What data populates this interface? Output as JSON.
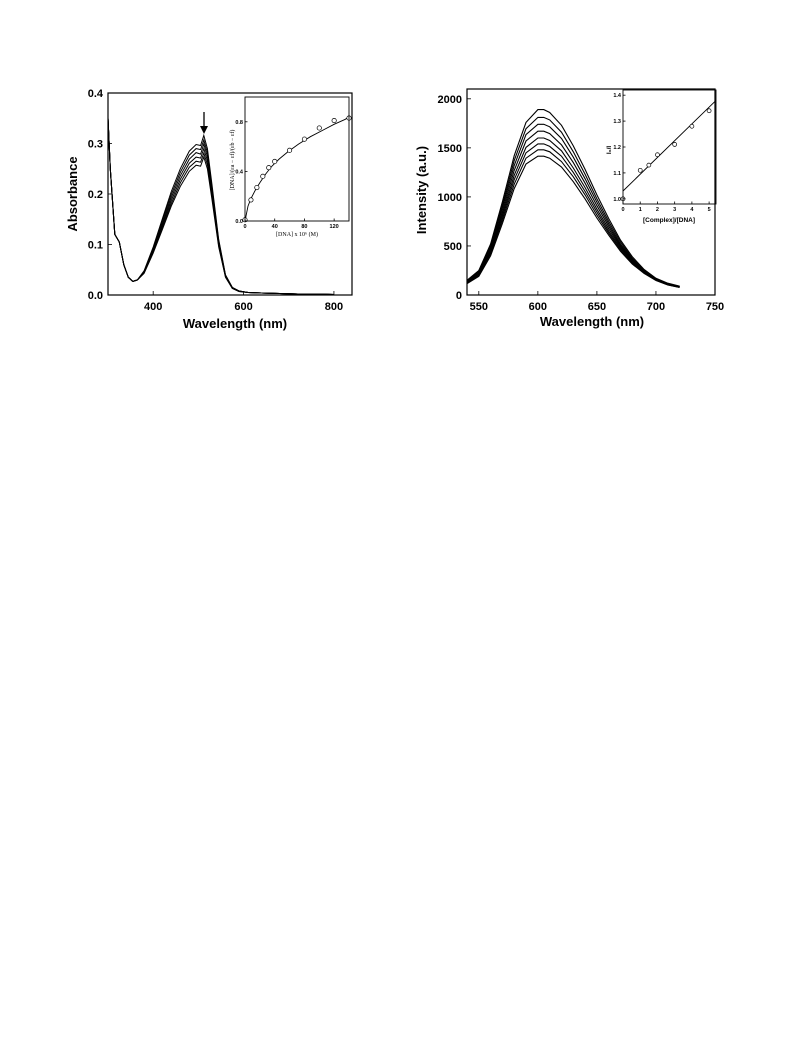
{
  "chart_data": [
    {
      "type": "line",
      "title": "",
      "xlabel": "Wavelength (nm)",
      "ylabel": "Absorbance",
      "xlim": [
        300,
        840
      ],
      "ylim": [
        0,
        0.4
      ],
      "xticks": [
        "400",
        "600",
        "800"
      ],
      "yticks": [
        "0.0",
        "0.1",
        "0.2",
        "0.3",
        "0.4"
      ],
      "x": [
        300,
        305,
        315,
        325,
        335,
        345,
        355,
        365,
        380,
        400,
        420,
        440,
        460,
        480,
        495,
        505,
        512,
        520,
        530,
        545,
        560,
        575,
        590,
        610,
        640,
        680,
        720,
        760,
        800
      ],
      "series": [
        {
          "values": [
            0.35,
            0.25,
            0.12,
            0.105,
            0.06,
            0.035,
            0.027,
            0.03,
            0.048,
            0.095,
            0.15,
            0.205,
            0.25,
            0.285,
            0.298,
            0.296,
            0.316,
            0.29,
            0.22,
            0.11,
            0.04,
            0.015,
            0.008,
            0.005,
            0.004,
            0.003,
            0.002,
            0.002,
            0.001
          ]
        },
        {
          "values": [
            0.35,
            0.25,
            0.12,
            0.105,
            0.06,
            0.035,
            0.027,
            0.03,
            0.047,
            0.092,
            0.146,
            0.199,
            0.243,
            0.277,
            0.29,
            0.288,
            0.307,
            0.282,
            0.214,
            0.107,
            0.039,
            0.015,
            0.008,
            0.005,
            0.004,
            0.003,
            0.002,
            0.002,
            0.001
          ]
        },
        {
          "values": [
            0.35,
            0.25,
            0.12,
            0.105,
            0.06,
            0.035,
            0.027,
            0.03,
            0.046,
            0.089,
            0.141,
            0.193,
            0.236,
            0.269,
            0.282,
            0.279,
            0.299,
            0.274,
            0.208,
            0.104,
            0.038,
            0.014,
            0.008,
            0.005,
            0.004,
            0.003,
            0.002,
            0.002,
            0.001
          ]
        },
        {
          "values": [
            0.35,
            0.25,
            0.12,
            0.105,
            0.06,
            0.035,
            0.027,
            0.03,
            0.045,
            0.087,
            0.137,
            0.187,
            0.229,
            0.261,
            0.273,
            0.271,
            0.29,
            0.266,
            0.202,
            0.101,
            0.037,
            0.014,
            0.008,
            0.005,
            0.004,
            0.003,
            0.002,
            0.002,
            0.001
          ]
        },
        {
          "values": [
            0.35,
            0.25,
            0.12,
            0.105,
            0.06,
            0.035,
            0.027,
            0.03,
            0.044,
            0.085,
            0.133,
            0.181,
            0.222,
            0.253,
            0.265,
            0.263,
            0.281,
            0.258,
            0.196,
            0.098,
            0.036,
            0.013,
            0.007,
            0.005,
            0.004,
            0.003,
            0.002,
            0.002,
            0.001
          ]
        },
        {
          "values": [
            0.35,
            0.25,
            0.12,
            0.105,
            0.06,
            0.035,
            0.027,
            0.03,
            0.043,
            0.083,
            0.129,
            0.176,
            0.215,
            0.245,
            0.257,
            0.255,
            0.273,
            0.25,
            0.19,
            0.095,
            0.035,
            0.013,
            0.007,
            0.005,
            0.004,
            0.003,
            0.002,
            0.002,
            0.001
          ]
        }
      ],
      "annotation": "down-arrow at ~512 nm",
      "inset": {
        "type": "scatter",
        "xlabel": "[DNA] x 10⁶ (M)",
        "ylabel": "[DNA]/(εa − εf)/(εb − εf)",
        "xlim": [
          0,
          140
        ],
        "ylim": [
          0,
          1.0
        ],
        "xticks": [
          "0",
          "40",
          "80",
          "120"
        ],
        "yticks": [
          "0.0",
          "0.4",
          "0.8"
        ],
        "points": {
          "x": [
            0,
            8,
            16,
            24,
            32,
            40,
            60,
            80,
            100,
            120,
            140
          ],
          "y": [
            0.01,
            0.17,
            0.27,
            0.36,
            0.43,
            0.48,
            0.57,
            0.66,
            0.75,
            0.81,
            0.83
          ]
        },
        "fit": {
          "x": [
            0,
            4,
            8,
            14,
            20,
            28,
            36,
            46,
            58,
            72,
            88,
            104,
            120,
            135,
            140
          ],
          "y": [
            0.0,
            0.12,
            0.18,
            0.25,
            0.31,
            0.38,
            0.44,
            0.5,
            0.56,
            0.62,
            0.68,
            0.73,
            0.78,
            0.82,
            0.84
          ]
        }
      }
    },
    {
      "type": "line",
      "title": "",
      "xlabel": "Wavelength (nm)",
      "ylabel": "Intensity (a.u.)",
      "xlim": [
        540,
        750
      ],
      "ylim": [
        0,
        2100
      ],
      "xticks": [
        "550",
        "600",
        "650",
        "700",
        "750"
      ],
      "yticks": [
        "0",
        "500",
        "1000",
        "1500",
        "2000"
      ],
      "x": [
        540,
        550,
        560,
        570,
        580,
        590,
        600,
        605,
        610,
        620,
        630,
        640,
        650,
        660,
        670,
        680,
        690,
        700,
        710,
        720
      ],
      "series": [
        {
          "values": [
            150,
            250,
            520,
            950,
            1420,
            1760,
            1890,
            1890,
            1860,
            1730,
            1520,
            1280,
            1020,
            780,
            560,
            390,
            260,
            170,
            120,
            90
          ]
        },
        {
          "values": [
            145,
            240,
            500,
            915,
            1370,
            1695,
            1810,
            1810,
            1785,
            1660,
            1460,
            1230,
            980,
            750,
            540,
            375,
            250,
            165,
            115,
            88
          ]
        },
        {
          "values": [
            140,
            235,
            485,
            885,
            1320,
            1635,
            1740,
            1740,
            1715,
            1595,
            1405,
            1185,
            945,
            725,
            520,
            365,
            245,
            160,
            112,
            86
          ]
        },
        {
          "values": [
            135,
            225,
            465,
            850,
            1270,
            1570,
            1670,
            1670,
            1645,
            1530,
            1350,
            1140,
            910,
            700,
            505,
            355,
            240,
            158,
            110,
            84
          ]
        },
        {
          "values": [
            130,
            215,
            450,
            820,
            1220,
            1505,
            1600,
            1600,
            1575,
            1470,
            1295,
            1095,
            875,
            675,
            490,
            345,
            235,
            155,
            108,
            82
          ]
        },
        {
          "values": [
            125,
            210,
            435,
            790,
            1175,
            1450,
            1540,
            1540,
            1515,
            1415,
            1250,
            1055,
            845,
            650,
            475,
            335,
            230,
            152,
            106,
            80
          ]
        },
        {
          "values": [
            120,
            200,
            420,
            760,
            1130,
            1395,
            1480,
            1480,
            1460,
            1360,
            1205,
            1020,
            815,
            630,
            460,
            325,
            225,
            150,
            104,
            78
          ]
        },
        {
          "values": [
            115,
            190,
            400,
            730,
            1085,
            1335,
            1415,
            1415,
            1395,
            1305,
            1155,
            980,
            785,
            610,
            445,
            315,
            220,
            148,
            102,
            76
          ]
        }
      ],
      "inset": {
        "type": "scatter",
        "xlabel": "[Complex]/[DNA]",
        "ylabel": "I₀/I",
        "xlim": [
          0,
          5.4
        ],
        "ylim": [
          0.98,
          1.42
        ],
        "xticks": [
          "0",
          "1",
          "2",
          "3",
          "4",
          "5"
        ],
        "yticks": [
          "1.0",
          "1.1",
          "1.2",
          "1.3",
          "1.4"
        ],
        "points": {
          "x": [
            0,
            1,
            1.5,
            2,
            3,
            4,
            5
          ],
          "y": [
            1.0,
            1.11,
            1.13,
            1.17,
            1.21,
            1.28,
            1.34
          ]
        },
        "fit": {
          "x": [
            0,
            5.4
          ],
          "y": [
            1.03,
            1.38
          ]
        }
      }
    }
  ]
}
